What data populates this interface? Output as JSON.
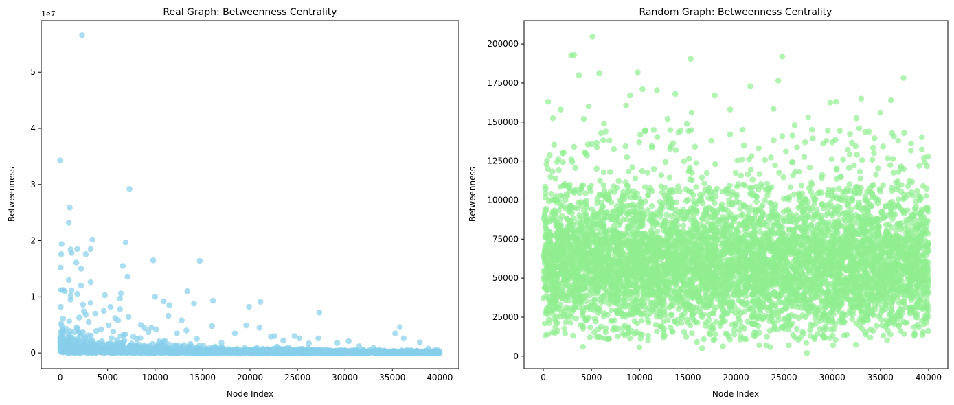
{
  "chart_data": [
    {
      "type": "scatter",
      "title": "Real Graph: Betweenness Centrality",
      "xlabel": "Node Index",
      "ylabel": "Betweenness",
      "offset_label": "1e7",
      "xlim": [
        -2000,
        42000
      ],
      "ylim": [
        -2.8,
        59.2
      ],
      "xticks": [
        0,
        5000,
        10000,
        15000,
        20000,
        25000,
        30000,
        35000,
        40000
      ],
      "xtick_labels": [
        "0",
        "5000",
        "10000",
        "15000",
        "20000",
        "25000",
        "30000",
        "35000",
        "40000"
      ],
      "yticks": [
        0,
        10,
        20,
        30,
        40,
        50
      ],
      "ytick_labels": [
        "0",
        "1",
        "2",
        "3",
        "4",
        "5"
      ],
      "y_unit": "1e6",
      "color": "#87CEEB",
      "alpha": 0.7,
      "grid": false,
      "n_points": 40000,
      "outliers": [
        [
          2300,
          56.6
        ],
        [
          0,
          34.3
        ],
        [
          7300,
          29.2
        ],
        [
          1000,
          25.9
        ],
        [
          900,
          23.2
        ],
        [
          3400,
          20.2
        ],
        [
          6900,
          19.7
        ],
        [
          150,
          19.4
        ],
        [
          1100,
          18.4
        ],
        [
          1800,
          18.5
        ],
        [
          3200,
          18.5
        ],
        [
          2700,
          17.6
        ],
        [
          1200,
          17.8
        ],
        [
          100,
          17.6
        ],
        [
          9800,
          16.5
        ],
        [
          14700,
          16.4
        ],
        [
          1700,
          16.1
        ],
        [
          6600,
          15.5
        ],
        [
          50,
          15.2
        ],
        [
          2200,
          15.0
        ],
        [
          7100,
          13.6
        ],
        [
          900,
          13.0
        ],
        [
          3200,
          12.6
        ],
        [
          2200,
          12.0
        ],
        [
          300,
          11.2
        ],
        [
          13400,
          11.0
        ],
        [
          1200,
          11.1
        ],
        [
          100,
          11.2
        ],
        [
          500,
          11.0
        ],
        [
          1100,
          10.2
        ],
        [
          4700,
          10.3
        ],
        [
          6400,
          10.6
        ],
        [
          1800,
          10.5
        ],
        [
          6300,
          9.7
        ],
        [
          1100,
          9.5
        ],
        [
          10000,
          10.0
        ],
        [
          10900,
          9.2
        ],
        [
          16100,
          9.3
        ],
        [
          21100,
          9.1
        ],
        [
          14100,
          8.8
        ],
        [
          2400,
          8.6
        ],
        [
          3200,
          8.9
        ],
        [
          5300,
          8.2
        ],
        [
          19900,
          8.2
        ],
        [
          11500,
          8.5
        ],
        [
          50,
          8.2
        ],
        [
          2500,
          7.4
        ],
        [
          2700,
          6.8
        ],
        [
          3700,
          7.0
        ],
        [
          27300,
          7.2
        ],
        [
          4600,
          7.5
        ],
        [
          6300,
          7.8
        ],
        [
          11400,
          6.6
        ],
        [
          12800,
          5.8
        ],
        [
          6100,
          5.8
        ],
        [
          5800,
          6.2
        ],
        [
          7200,
          6.4
        ],
        [
          300,
          6.1
        ],
        [
          100,
          5.2
        ],
        [
          16000,
          4.8
        ],
        [
          19600,
          4.9
        ],
        [
          35800,
          4.6
        ],
        [
          21000,
          4.5
        ],
        [
          8500,
          5.0
        ],
        [
          9600,
          4.5
        ],
        [
          10100,
          4.2
        ],
        [
          12300,
          3.5
        ],
        [
          13300,
          4.0
        ],
        [
          18400,
          3.5
        ],
        [
          22600,
          3.0
        ],
        [
          24700,
          3.0
        ],
        [
          35300,
          3.5
        ],
        [
          36200,
          2.6
        ],
        [
          27200,
          2.6
        ],
        [
          25200,
          2.6
        ],
        [
          29200,
          1.8
        ],
        [
          30400,
          2.1
        ],
        [
          37900,
          1.9
        ],
        [
          22200,
          2.9
        ],
        [
          14400,
          2.5
        ],
        [
          4300,
          4.2
        ],
        [
          8900,
          4.4
        ],
        [
          5600,
          3.8
        ],
        [
          7700,
          2.9
        ],
        [
          3000,
          5.5
        ],
        [
          1500,
          3.7
        ],
        [
          600,
          4.3
        ],
        [
          2000,
          6.3
        ],
        [
          3800,
          3.9
        ],
        [
          5100,
          4.9
        ],
        [
          6700,
          3.2
        ],
        [
          9300,
          3.7
        ],
        [
          17000,
          1.8
        ],
        [
          23500,
          2.2
        ],
        [
          26200,
          1.7
        ],
        [
          31500,
          1.2
        ],
        [
          33000,
          0.9
        ],
        [
          38800,
          0.8
        ],
        [
          39500,
          0.5
        ],
        [
          200,
          2.8
        ]
      ]
    },
    {
      "type": "scatter",
      "title": "Random Graph: Betweenness Centrality",
      "xlabel": "Node Index",
      "ylabel": "Betweenness",
      "xlim": [
        -2000,
        42000
      ],
      "ylim": [
        -8000,
        215000
      ],
      "xticks": [
        0,
        5000,
        10000,
        15000,
        20000,
        25000,
        30000,
        35000,
        40000
      ],
      "xtick_labels": [
        "0",
        "5000",
        "10000",
        "15000",
        "20000",
        "25000",
        "30000",
        "35000",
        "40000"
      ],
      "yticks": [
        0,
        25000,
        50000,
        75000,
        100000,
        125000,
        150000,
        175000,
        200000
      ],
      "ytick_labels": [
        "0",
        "25000",
        "50000",
        "75000",
        "100000",
        "125000",
        "150000",
        "175000",
        "200000"
      ],
      "color": "#90EE90",
      "alpha": 0.7,
      "grid": false,
      "n_points": 40000,
      "outliers": [
        [
          5100,
          204700
        ],
        [
          2900,
          192700
        ],
        [
          3200,
          193000
        ],
        [
          24800,
          192000
        ],
        [
          15300,
          190500
        ],
        [
          5800,
          181300
        ],
        [
          9800,
          181800
        ],
        [
          3700,
          180000
        ],
        [
          37400,
          178300
        ],
        [
          24400,
          176500
        ],
        [
          21500,
          173000
        ],
        [
          10300,
          171000
        ],
        [
          11800,
          170300
        ],
        [
          500,
          163000
        ],
        [
          36100,
          164000
        ],
        [
          33000,
          165000
        ],
        [
          9000,
          167000
        ],
        [
          13700,
          168000
        ],
        [
          17800,
          167000
        ],
        [
          29800,
          162500
        ],
        [
          30400,
          163000
        ],
        [
          4700,
          160000
        ],
        [
          19400,
          158000
        ],
        [
          23900,
          158500
        ],
        [
          1800,
          158000
        ],
        [
          35000,
          156000
        ],
        [
          27500,
          153000
        ],
        [
          8600,
          160500
        ],
        [
          15400,
          156000
        ],
        [
          12900,
          152000
        ],
        [
          32500,
          152500
        ],
        [
          1000,
          152500
        ],
        [
          4200,
          152000
        ],
        [
          6300,
          149000
        ],
        [
          14900,
          149000
        ],
        [
          26100,
          148000
        ],
        [
          20700,
          145000
        ],
        [
          32800,
          146000
        ],
        [
          27900,
          145000
        ],
        [
          2000,
          130000
        ]
      ]
    }
  ]
}
